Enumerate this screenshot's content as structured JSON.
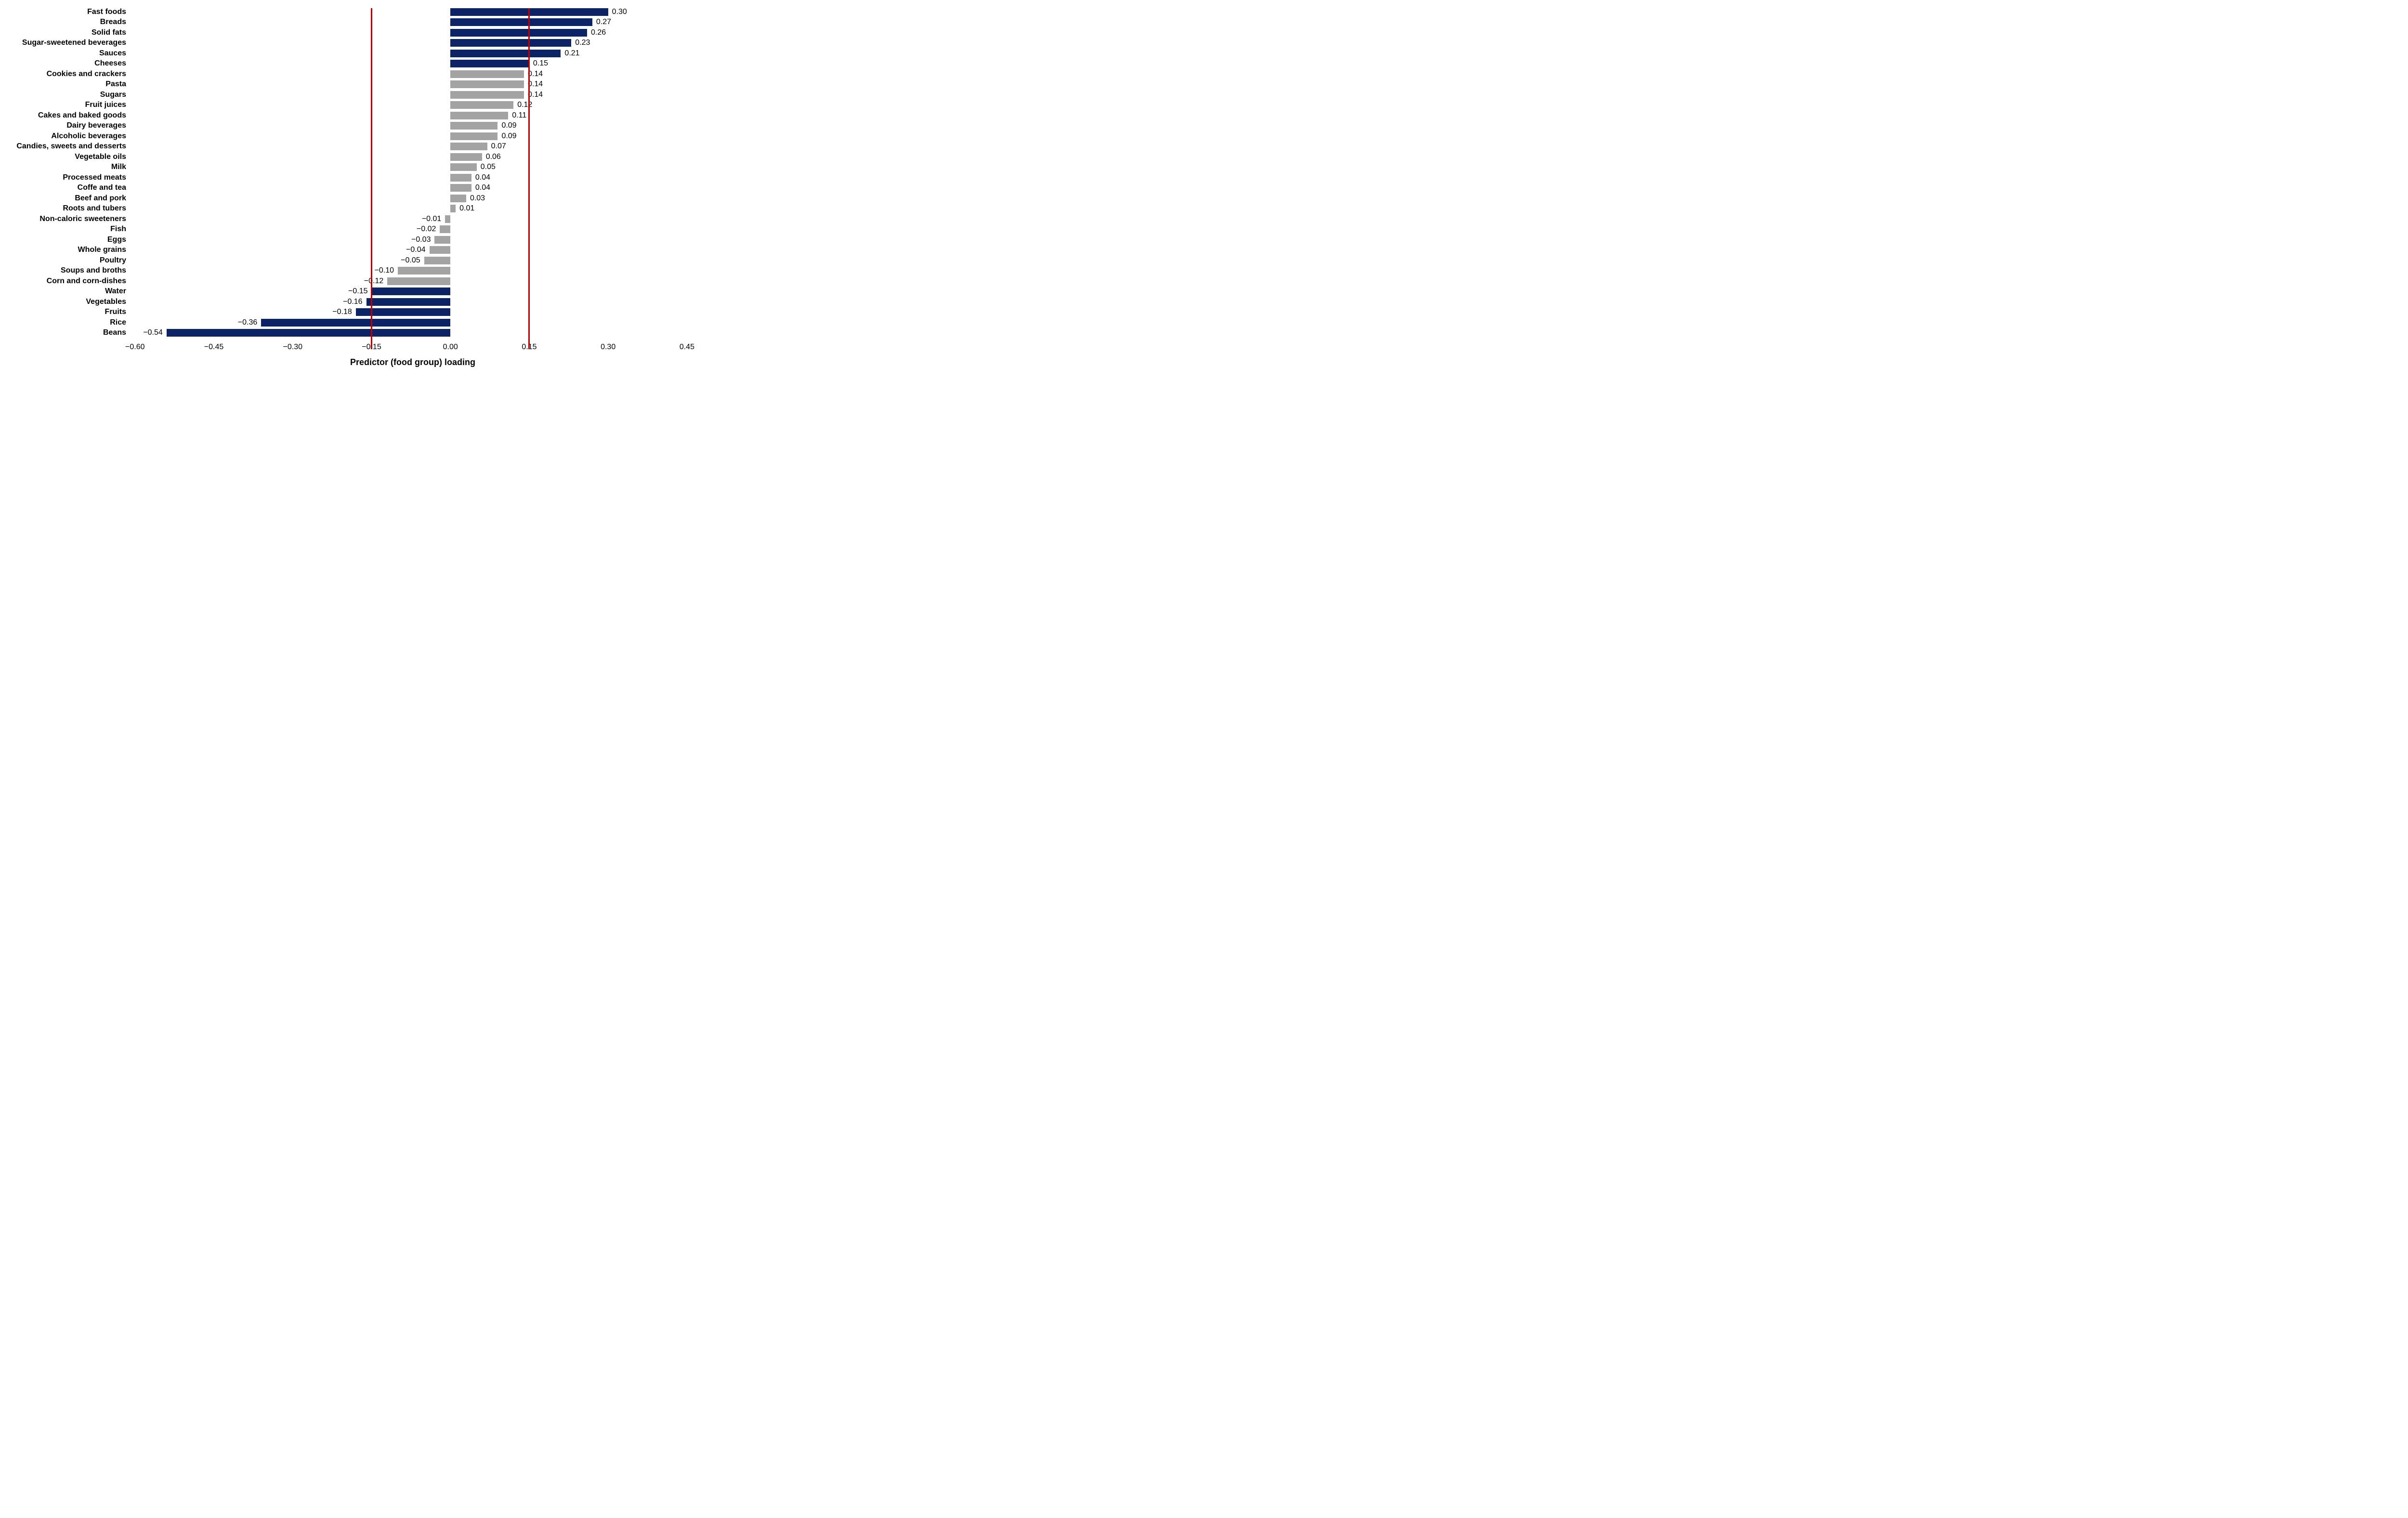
{
  "chart_data": {
    "type": "bar",
    "orientation": "horizontal",
    "xlabel": "Predictor (food group) loading",
    "xlim": [
      -0.6076,
      0.4643
    ],
    "xticks": [
      -0.6,
      -0.45,
      -0.3,
      -0.15,
      0.0,
      0.15,
      0.3,
      0.45
    ],
    "xtick_labels": [
      "−0.60",
      "−0.45",
      "−0.30",
      "−0.15",
      "0.00",
      "0.15",
      "0.30",
      "0.45"
    ],
    "grid": false,
    "legend": "none",
    "reference_lines": [
      -0.15,
      0.15
    ],
    "highlight_threshold": 0.15,
    "colors": {
      "highlight_bar": "#0c2365",
      "normal_bar": "#a3a3a3",
      "reference_line": "#c00000",
      "text": "#000000",
      "background": "#ffffff"
    },
    "categories": [
      "Fast foods",
      "Breads",
      "Solid fats",
      "Sugar-sweetened beverages",
      "Sauces",
      "Cheeses",
      "Cookies and crackers",
      "Pasta",
      "Sugars",
      "Fruit juices",
      "Cakes and baked goods",
      "Dairy beverages",
      "Alcoholic beverages",
      "Candies, sweets and desserts",
      "Vegetable oils",
      "Milk",
      "Processed meats",
      "Coffe and tea",
      "Beef and pork",
      "Roots and tubers",
      "Non-caloric sweeteners",
      "Fish",
      "Eggs",
      "Whole grains",
      "Poultry",
      "Soups and broths",
      "Corn and corn-dishes",
      "Water",
      "Vegetables",
      "Fruits",
      "Rice",
      "Beans"
    ],
    "values": [
      0.3,
      0.27,
      0.26,
      0.23,
      0.21,
      0.15,
      0.14,
      0.14,
      0.14,
      0.12,
      0.11,
      0.09,
      0.09,
      0.07,
      0.06,
      0.05,
      0.04,
      0.04,
      0.03,
      0.01,
      -0.01,
      -0.02,
      -0.03,
      -0.04,
      -0.05,
      -0.1,
      -0.12,
      -0.15,
      -0.16,
      -0.18,
      -0.36,
      -0.54
    ],
    "value_labels": [
      "0.30",
      "0.27",
      "0.26",
      "0.23",
      "0.21",
      "0.15",
      "0.14",
      "0.14",
      "0.14",
      "0.12",
      "0.11",
      "0.09",
      "0.09",
      "0.07",
      "0.06",
      "0.05",
      "0.04",
      "0.04",
      "0.03",
      "0.01",
      "−0.01",
      "−0.02",
      "−0.03",
      "−0.04",
      "−0.05",
      "−0.10",
      "−0.12",
      "−0.15",
      "−0.16",
      "−0.18",
      "−0.36",
      "−0.54"
    ]
  }
}
